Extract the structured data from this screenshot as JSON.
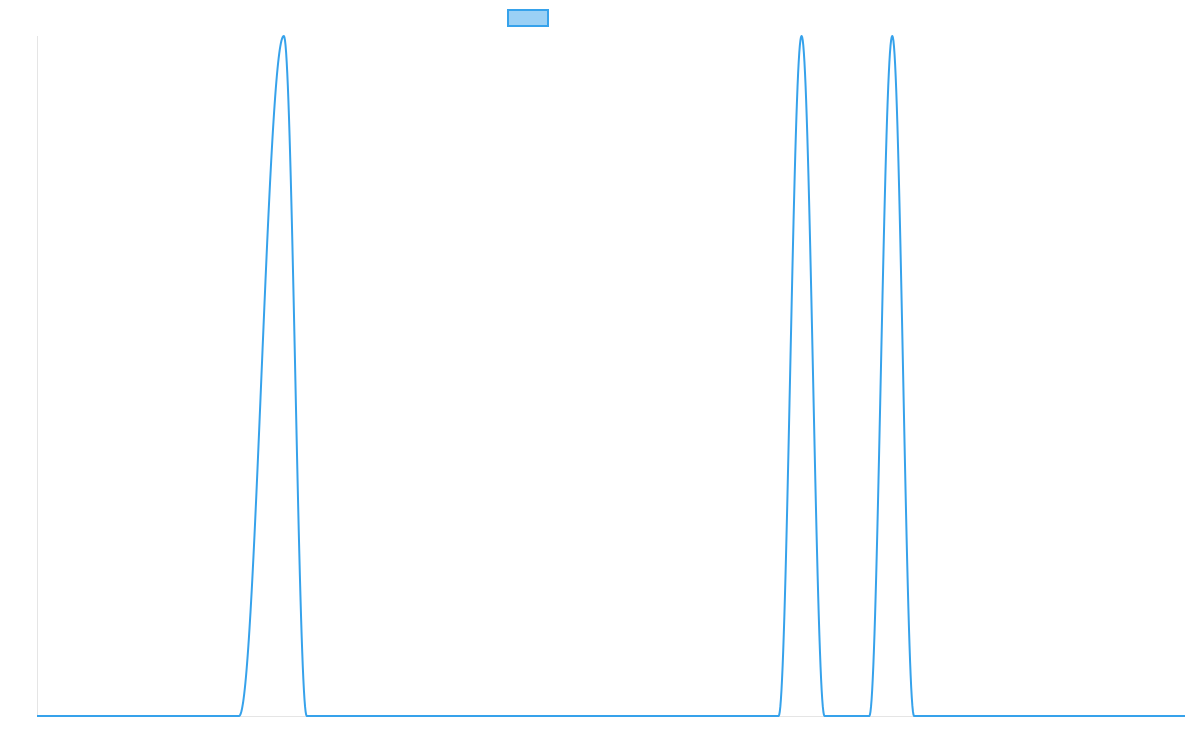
{
  "colors": {
    "series_line": "#36a2eb",
    "series_fill": "#9ad0f5",
    "axis": "#e5e5e5",
    "background": "#ffffff"
  },
  "chart_data": {
    "type": "line",
    "title": "",
    "xlabel": "",
    "ylabel": "",
    "grid": false,
    "legend": {
      "placement": "top-center",
      "label": ""
    },
    "xlim": [
      0,
      1000
    ],
    "ylim": [
      0,
      1
    ],
    "series": [
      {
        "name": "",
        "fill": false,
        "peaks": [
          {
            "center": 215,
            "start": 176,
            "end": 235,
            "height": 1
          },
          {
            "center": 666,
            "start": 646,
            "end": 686,
            "height": 1
          },
          {
            "center": 745,
            "start": 725,
            "end": 764,
            "height": 1
          }
        ]
      }
    ]
  }
}
